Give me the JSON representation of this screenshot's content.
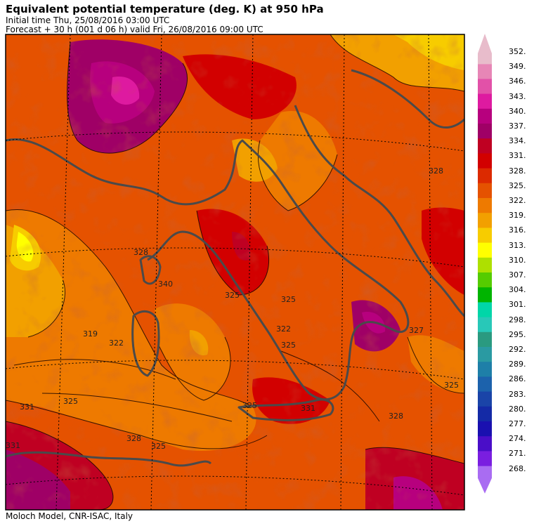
{
  "header": {
    "title": "Equivalent potential temperature (deg. K) at 950 hPa",
    "initial_time": "Initial time  Thu, 25/08/2016  03:00 UTC",
    "forecast": "Forecast  +  30 h  (001 d 06 h)  valid Fri, 26/08/2016 09:00 UTC"
  },
  "footer": {
    "credit": "Moloch Model, CNR-ISAC, Italy"
  },
  "colorbar": {
    "levels": [
      {
        "label": "352.",
        "color": "#e8bccb"
      },
      {
        "label": "349.",
        "color": "#e786b6"
      },
      {
        "label": "346.",
        "color": "#e251a8"
      },
      {
        "label": "343.",
        "color": "#de1aa0"
      },
      {
        "label": "340.",
        "color": "#b7007e"
      },
      {
        "label": "337.",
        "color": "#9f0066"
      },
      {
        "label": "334.",
        "color": "#bf0022"
      },
      {
        "label": "331.",
        "color": "#d20000"
      },
      {
        "label": "328.",
        "color": "#dc2a00"
      },
      {
        "label": "325.",
        "color": "#e55200"
      },
      {
        "label": "322.",
        "color": "#ee7a00"
      },
      {
        "label": "319.",
        "color": "#f2a000"
      },
      {
        "label": "316.",
        "color": "#f7cc00"
      },
      {
        "label": "313.",
        "color": "#ffff00"
      },
      {
        "label": "310.",
        "color": "#aee000"
      },
      {
        "label": "307.",
        "color": "#55cc00"
      },
      {
        "label": "304.",
        "color": "#00b400"
      },
      {
        "label": "301.",
        "color": "#00d6a8"
      },
      {
        "label": "298.",
        "color": "#28c8b8"
      },
      {
        "label": "295.",
        "color": "#2a9a80"
      },
      {
        "label": "292.",
        "color": "#2a9aa2"
      },
      {
        "label": "289.",
        "color": "#1e7fa8"
      },
      {
        "label": "286.",
        "color": "#1c62ac"
      },
      {
        "label": "283.",
        "color": "#1a44a8"
      },
      {
        "label": "280.",
        "color": "#142aa6"
      },
      {
        "label": "277.",
        "color": "#1a10b0"
      },
      {
        "label": "274.",
        "color": "#4a0ec8"
      },
      {
        "label": "271.",
        "color": "#7a1ee0"
      },
      {
        "label": "268.",
        "color": "#a96cf2"
      }
    ]
  },
  "map": {
    "contour_labels": [
      "319",
      "325",
      "325",
      "331",
      "325",
      "331",
      "328",
      "328",
      "322",
      "325",
      "325",
      "322",
      "340",
      "328",
      "328",
      "325",
      "327",
      "331",
      "325"
    ]
  }
}
